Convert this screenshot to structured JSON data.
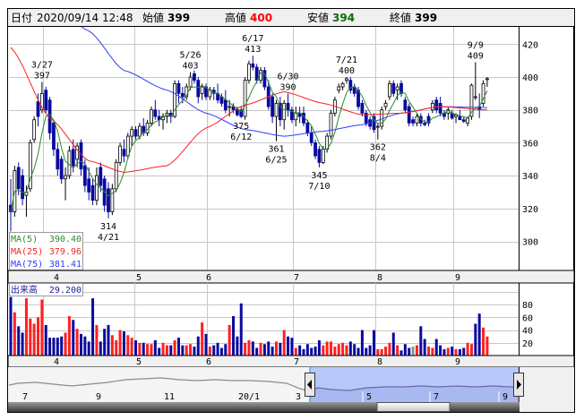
{
  "header": {
    "date_label": "日付",
    "datetime": "2020/09/14 12:48",
    "open_label": "始値",
    "open": "399",
    "high_label": "高値",
    "high": "400",
    "low_label": "安値",
    "low": "394",
    "close_label": "終値",
    "close": "399"
  },
  "legend": {
    "ma5_label": "MA(5)",
    "ma5_value": "390.40",
    "ma25_label": "MA(25)",
    "ma25_value": "379.96",
    "ma75_label": "MA(75)",
    "ma75_value": "381.41",
    "volume_label": "出来高",
    "volume_value": "29.200"
  },
  "colors": {
    "up_candle": "#ffffff",
    "down_candle": "#0a0aa0",
    "ma5": "#2a8a2a",
    "ma25": "#ff2020",
    "ma75": "#2f3cff",
    "volume_up": "#ff2020",
    "volume_down": "#0a0aa0",
    "volume_flat": "#909090",
    "navigator_selection": "#b8c8f8"
  },
  "chart_data": {
    "type": "candlestick",
    "price_axis": {
      "ticks": [
        "420",
        "400",
        "380",
        "360",
        "340",
        "320",
        "300"
      ],
      "ylim": [
        293,
        430
      ]
    },
    "month_ticks": [
      "4",
      "5",
      "6",
      "7",
      "8",
      "9"
    ],
    "volume_axis": {
      "ticks": [
        "80",
        "60",
        "40",
        "20"
      ],
      "ylim": [
        0,
        114
      ]
    },
    "dates": [
      "3/16",
      "3/17",
      "3/18",
      "3/19",
      "3/23",
      "3/24",
      "3/25",
      "3/26",
      "3/27",
      "3/30",
      "3/31",
      "4/1",
      "4/2",
      "4/3",
      "4/6",
      "4/7",
      "4/8",
      "4/9",
      "4/10",
      "4/13",
      "4/14",
      "4/15",
      "4/16",
      "4/17",
      "4/20",
      "4/21",
      "4/22",
      "4/23",
      "4/24",
      "4/27",
      "4/28",
      "4/30",
      "5/1",
      "5/7",
      "5/8",
      "5/11",
      "5/12",
      "5/13",
      "5/14",
      "5/15",
      "5/18",
      "5/19",
      "5/20",
      "5/21",
      "5/22",
      "5/25",
      "5/26",
      "5/27",
      "5/28",
      "5/29",
      "6/1",
      "6/2",
      "6/3",
      "6/4",
      "6/5",
      "6/8",
      "6/9",
      "6/10",
      "6/11",
      "6/12",
      "6/15",
      "6/16",
      "6/17",
      "6/18",
      "6/19",
      "6/22",
      "6/23",
      "6/24",
      "6/25",
      "6/26",
      "6/29",
      "6/30",
      "7/1",
      "7/2",
      "7/3",
      "7/6",
      "7/7",
      "7/8",
      "7/9",
      "7/10",
      "7/13",
      "7/14",
      "7/15",
      "7/16",
      "7/17",
      "7/20",
      "7/21",
      "7/22",
      "7/27",
      "7/28",
      "7/29",
      "7/30",
      "7/31",
      "8/3",
      "8/4",
      "8/5",
      "8/6",
      "8/7",
      "8/11",
      "8/12",
      "8/13",
      "8/14",
      "8/17",
      "8/18",
      "8/19",
      "8/20",
      "8/21",
      "8/24",
      "8/25",
      "8/26",
      "8/27",
      "8/28",
      "8/31",
      "9/1",
      "9/2",
      "9/3",
      "9/4",
      "9/7",
      "9/8",
      "9/9",
      "9/10",
      "9/11",
      "9/14"
    ],
    "ohlc": [
      [
        322,
        338,
        306,
        318
      ],
      [
        318,
        346,
        315,
        343
      ],
      [
        345,
        348,
        328,
        332
      ],
      [
        340,
        344,
        322,
        326
      ],
      [
        328,
        334,
        315,
        330
      ],
      [
        332,
        362,
        330,
        360
      ],
      [
        362,
        376,
        360,
        374
      ],
      [
        385,
        390,
        370,
        376
      ],
      [
        380,
        397,
        378,
        390
      ],
      [
        392,
        394,
        378,
        380
      ],
      [
        386,
        388,
        362,
        366
      ],
      [
        372,
        374,
        352,
        356
      ],
      [
        356,
        360,
        340,
        344
      ],
      [
        350,
        352,
        335,
        338
      ],
      [
        338,
        345,
        325,
        340
      ],
      [
        340,
        358,
        338,
        355
      ],
      [
        356,
        362,
        342,
        346
      ],
      [
        350,
        360,
        345,
        358
      ],
      [
        360,
        362,
        340,
        344
      ],
      [
        346,
        350,
        330,
        334
      ],
      [
        338,
        345,
        325,
        330
      ],
      [
        334,
        338,
        322,
        325
      ],
      [
        325,
        345,
        322,
        340
      ],
      [
        345,
        348,
        330,
        334
      ],
      [
        338,
        340,
        318,
        322
      ],
      [
        332,
        336,
        314,
        318
      ],
      [
        318,
        335,
        316,
        332
      ],
      [
        332,
        350,
        330,
        348
      ],
      [
        348,
        360,
        346,
        358
      ],
      [
        356,
        362,
        348,
        352
      ],
      [
        352,
        366,
        350,
        364
      ],
      [
        364,
        370,
        358,
        368
      ],
      [
        368,
        370,
        362,
        364
      ],
      [
        364,
        372,
        362,
        370
      ],
      [
        370,
        375,
        364,
        366
      ],
      [
        366,
        374,
        364,
        372
      ],
      [
        372,
        382,
        370,
        380
      ],
      [
        380,
        386,
        374,
        376
      ],
      [
        376,
        380,
        370,
        374
      ],
      [
        374,
        378,
        368,
        376
      ],
      [
        376,
        380,
        372,
        378
      ],
      [
        378,
        380,
        372,
        376
      ],
      [
        376,
        398,
        375,
        396
      ],
      [
        396,
        398,
        384,
        390
      ],
      [
        390,
        394,
        384,
        388
      ],
      [
        388,
        396,
        386,
        394
      ],
      [
        394,
        403,
        392,
        400
      ],
      [
        402,
        404,
        396,
        398
      ],
      [
        398,
        400,
        384,
        388
      ],
      [
        390,
        396,
        386,
        394
      ],
      [
        394,
        396,
        386,
        388
      ],
      [
        388,
        394,
        386,
        392
      ],
      [
        392,
        394,
        386,
        390
      ],
      [
        390,
        396,
        384,
        386
      ],
      [
        388,
        390,
        382,
        384
      ],
      [
        386,
        392,
        378,
        380
      ],
      [
        382,
        386,
        376,
        382
      ],
      [
        382,
        384,
        378,
        380
      ],
      [
        380,
        382,
        376,
        377
      ],
      [
        380,
        382,
        375,
        376
      ],
      [
        376,
        400,
        374,
        398
      ],
      [
        398,
        410,
        396,
        408
      ],
      [
        408,
        413,
        404,
        406
      ],
      [
        406,
        408,
        396,
        398
      ],
      [
        398,
        406,
        396,
        404
      ],
      [
        404,
        406,
        392,
        394
      ],
      [
        394,
        398,
        380,
        382
      ],
      [
        388,
        390,
        372,
        376
      ],
      [
        376,
        386,
        361,
        384
      ],
      [
        384,
        388,
        370,
        374
      ],
      [
        374,
        386,
        368,
        384
      ],
      [
        384,
        390,
        376,
        380
      ],
      [
        380,
        382,
        372,
        374
      ],
      [
        374,
        382,
        370,
        378
      ],
      [
        378,
        382,
        372,
        376
      ],
      [
        378,
        382,
        370,
        372
      ],
      [
        372,
        374,
        364,
        366
      ],
      [
        366,
        370,
        358,
        360
      ],
      [
        360,
        362,
        350,
        352
      ],
      [
        356,
        358,
        345,
        348
      ],
      [
        348,
        358,
        347,
        356
      ],
      [
        356,
        366,
        354,
        364
      ],
      [
        364,
        380,
        362,
        378
      ],
      [
        378,
        388,
        376,
        386
      ],
      [
        392,
        396,
        390,
        394
      ],
      [
        394,
        397,
        392,
        396
      ],
      [
        398,
        400,
        396,
        399
      ],
      [
        398,
        400,
        390,
        392
      ],
      [
        394,
        396,
        388,
        390
      ],
      [
        392,
        394,
        380,
        382
      ],
      [
        384,
        386,
        376,
        378
      ],
      [
        378,
        380,
        370,
        372
      ],
      [
        374,
        376,
        368,
        370
      ],
      [
        376,
        378,
        366,
        368
      ],
      [
        370,
        372,
        362,
        370
      ],
      [
        370,
        382,
        368,
        380
      ],
      [
        382,
        386,
        380,
        384
      ],
      [
        388,
        398,
        386,
        396
      ],
      [
        396,
        398,
        388,
        390
      ],
      [
        392,
        396,
        386,
        394
      ],
      [
        396,
        398,
        388,
        390
      ],
      [
        386,
        388,
        378,
        380
      ],
      [
        382,
        384,
        370,
        372
      ],
      [
        374,
        376,
        370,
        372
      ],
      [
        372,
        378,
        370,
        376
      ],
      [
        376,
        378,
        370,
        372
      ],
      [
        372,
        374,
        370,
        371
      ],
      [
        376,
        378,
        370,
        372
      ],
      [
        380,
        386,
        378,
        384
      ],
      [
        386,
        388,
        378,
        380
      ],
      [
        384,
        388,
        376,
        378
      ],
      [
        378,
        380,
        374,
        376
      ],
      [
        378,
        382,
        374,
        380
      ],
      [
        378,
        380,
        374,
        375
      ],
      [
        376,
        378,
        372,
        377
      ],
      [
        376,
        380,
        374,
        374
      ],
      [
        374,
        376,
        372,
        373
      ],
      [
        372,
        376,
        370,
        375
      ],
      [
        376,
        396,
        374,
        395
      ],
      [
        388,
        409,
        386,
        388
      ],
      [
        382,
        390,
        375,
        380
      ],
      [
        384,
        398,
        382,
        396
      ],
      [
        399,
        400,
        394,
        399
      ]
    ],
    "volume": [
      92,
      68,
      46,
      36,
      90,
      58,
      50,
      60,
      88,
      48,
      28,
      28,
      28,
      30,
      36,
      62,
      56,
      42,
      34,
      30,
      22,
      90,
      48,
      22,
      42,
      48,
      32,
      24,
      40,
      38,
      32,
      28,
      24,
      20,
      20,
      18,
      18,
      24,
      12,
      20,
      16,
      16,
      24,
      28,
      16,
      16,
      18,
      14,
      30,
      52,
      34,
      14,
      16,
      20,
      12,
      18,
      48,
      62,
      30,
      82,
      20,
      24,
      22,
      12,
      20,
      18,
      22,
      14,
      22,
      20,
      40,
      30,
      28,
      12,
      16,
      10,
      18,
      12,
      14,
      24,
      16,
      22,
      22,
      14,
      18,
      20,
      16,
      22,
      18,
      12,
      40,
      12,
      16,
      40,
      10,
      10,
      14,
      20,
      36,
      16,
      8,
      18,
      12,
      14,
      16,
      46,
      26,
      14,
      12,
      26,
      16,
      10,
      12,
      14,
      10,
      10,
      12,
      20,
      18,
      50,
      66,
      44,
      30
    ],
    "ma25": [
      [
        "3/16",
        418
      ],
      [
        "3/31",
        375
      ],
      [
        "4/14",
        349
      ],
      [
        "4/27",
        342
      ],
      [
        "5/18",
        346
      ],
      [
        "6/1",
        369
      ],
      [
        "6/15",
        383
      ],
      [
        "6/29",
        391
      ],
      [
        "7/13",
        384
      ],
      [
        "7/29",
        377
      ],
      [
        "8/13",
        378
      ],
      [
        "8/27",
        382
      ],
      [
        "9/14",
        379.96
      ]
    ],
    "ma75": [
      [
        "3/16",
        467
      ],
      [
        "3/31",
        446
      ],
      [
        "4/14",
        428
      ],
      [
        "4/27",
        404
      ],
      [
        "5/18",
        392
      ],
      [
        "6/1",
        378
      ],
      [
        "6/15",
        368
      ],
      [
        "6/29",
        364
      ],
      [
        "7/13",
        367
      ],
      [
        "7/29",
        371
      ],
      [
        "8/13",
        378
      ],
      [
        "8/27",
        382
      ],
      [
        "9/14",
        381.41
      ]
    ],
    "annotations": [
      {
        "date": "3/27",
        "price": "397",
        "pos": "above"
      },
      {
        "date": "5/26",
        "price": "403",
        "pos": "above"
      },
      {
        "date": "6/17",
        "price": "413",
        "pos": "above"
      },
      {
        "date": "6/30",
        "price": "390",
        "pos": "above"
      },
      {
        "date": "7/21",
        "price": "400",
        "pos": "above"
      },
      {
        "date": "9/9",
        "price": "409",
        "pos": "above"
      },
      {
        "date": "4/21",
        "price": "314",
        "pos": "below"
      },
      {
        "date": "6/12",
        "price": "375",
        "pos": "below"
      },
      {
        "date": "6/25",
        "price": "361",
        "pos": "below"
      },
      {
        "date": "7/10",
        "price": "345",
        "pos": "below"
      },
      {
        "date": "8/4",
        "price": "362",
        "pos": "below"
      }
    ]
  },
  "navigator": {
    "labels": [
      "7",
      "9",
      "11",
      "20/1",
      "3",
      "5",
      "7",
      "9"
    ],
    "left_handle_icon": "triangle-left-icon",
    "right_handle_icon": "triangle-right-icon"
  }
}
